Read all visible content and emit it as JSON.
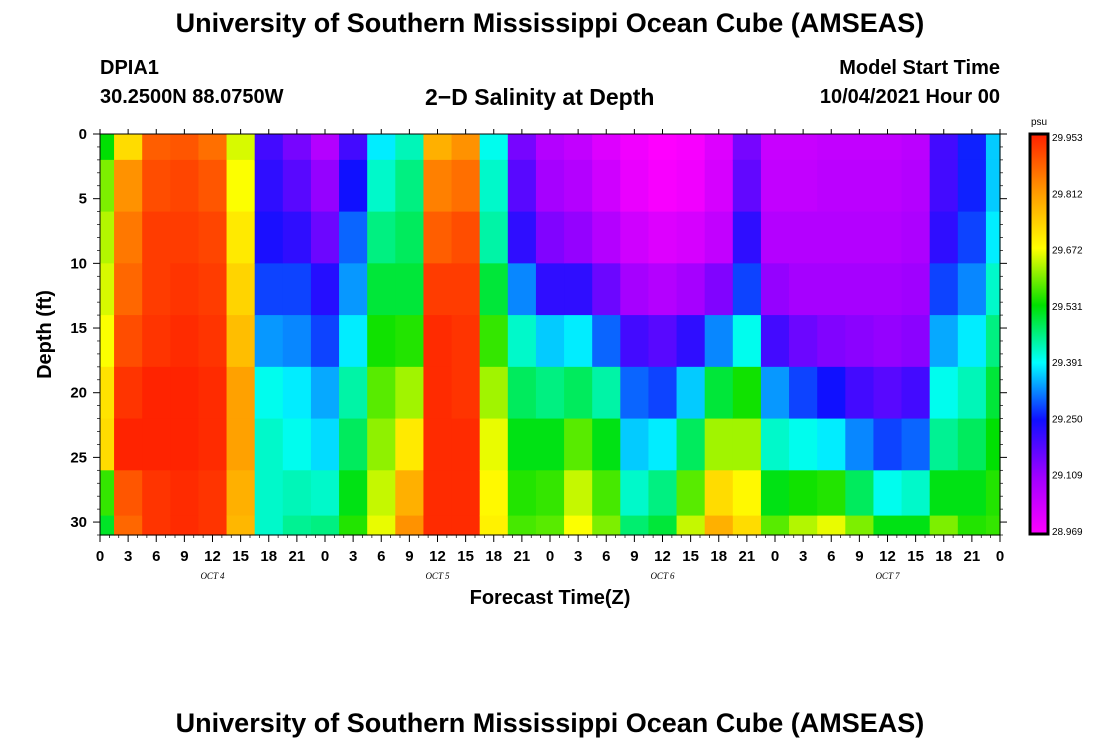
{
  "header": {
    "title": "University of Southern Mississippi Ocean Cube (AMSEAS)",
    "station_id": "DPIA1",
    "station_coords": "30.2500N  88.0750W",
    "chart_title": "2−D Salinity at Depth",
    "model_start_label": "Model Start Time",
    "model_start_value": "10/04/2021 Hour 00"
  },
  "footer": {
    "title": "University of Southern Mississippi Ocean Cube (AMSEAS)"
  },
  "chart_data": {
    "type": "heatmap",
    "title": "2−D Salinity at Depth",
    "xlabel": "Forecast Time(Z)",
    "ylabel": "Depth (ft)",
    "x_range_hours": [
      0,
      96
    ],
    "ylim": [
      0,
      31
    ],
    "y_inverted": true,
    "x_tick_labels": [
      "0",
      "3",
      "6",
      "9",
      "12",
      "15",
      "18",
      "21",
      "0",
      "3",
      "6",
      "9",
      "12",
      "15",
      "18",
      "21",
      "0",
      "3",
      "6",
      "9",
      "12",
      "15",
      "18",
      "21",
      "0",
      "3",
      "6",
      "9",
      "12",
      "15",
      "18",
      "21",
      "0"
    ],
    "day_labels": [
      "OCT 4",
      "OCT 5",
      "OCT 6",
      "OCT 7"
    ],
    "y_ticks": [
      0,
      5,
      10,
      15,
      20,
      25,
      30
    ],
    "colorbar": {
      "unit": "psu",
      "levels": [
        29.953,
        29.812,
        29.672,
        29.531,
        29.391,
        29.25,
        29.109,
        28.969
      ],
      "colors": [
        "#ff2000",
        "#ff9800",
        "#ffff00",
        "#00e000",
        "#00ffff",
        "#1010ff",
        "#a000ff",
        "#ff00ff"
      ]
    },
    "depths_ft": [
      0,
      4,
      8,
      12,
      16,
      20,
      24,
      28,
      31
    ],
    "times_hours": [
      0,
      3,
      6,
      9,
      12,
      15,
      18,
      21,
      24,
      27,
      30,
      33,
      36,
      39,
      42,
      45,
      48,
      51,
      54,
      57,
      60,
      63,
      66,
      69,
      72,
      75,
      78,
      81,
      84,
      87,
      90,
      93,
      96
    ],
    "salinity_psu": [
      [
        29.53,
        29.6,
        29.63,
        29.65,
        29.67,
        29.71,
        29.72,
        29.56,
        29.51,
        29.61,
        29.65,
        29.7,
        29.69
      ],
      [
        29.72,
        29.82,
        29.85,
        29.87,
        29.9,
        29.93,
        29.95,
        29.89,
        29.87,
        29.9,
        29.92,
        29.93,
        29.94
      ],
      [
        29.88,
        29.9,
        29.92,
        29.92,
        29.93,
        29.95,
        29.95,
        29.93,
        29.93,
        29.93,
        29.94,
        29.94,
        29.94
      ],
      [
        29.89,
        29.91,
        29.92,
        29.93,
        29.94,
        29.95,
        29.95,
        29.94,
        29.94,
        29.94,
        29.94,
        29.94,
        29.94
      ],
      [
        29.86,
        29.89,
        29.91,
        29.92,
        29.93,
        29.94,
        29.94,
        29.93,
        29.93,
        29.93,
        29.93,
        29.93,
        29.93
      ],
      [
        29.65,
        29.67,
        29.7,
        29.73,
        29.76,
        29.8,
        29.8,
        29.78,
        29.77,
        29.77,
        29.76,
        29.76,
        29.76
      ],
      [
        29.2,
        29.22,
        29.24,
        29.28,
        29.33,
        29.4,
        29.42,
        29.42,
        29.42,
        29.43,
        29.43,
        29.44,
        29.44
      ],
      [
        29.15,
        29.18,
        29.22,
        29.28,
        29.32,
        29.38,
        29.4,
        29.43,
        29.45,
        29.46,
        29.46,
        29.47,
        29.47
      ],
      [
        29.08,
        29.12,
        29.16,
        29.23,
        29.28,
        29.34,
        29.37,
        29.42,
        29.46,
        29.49,
        29.52,
        29.53,
        29.53
      ],
      [
        29.2,
        29.25,
        29.3,
        29.33,
        29.38,
        29.44,
        29.48,
        29.52,
        29.55,
        29.58,
        29.6,
        29.61,
        29.61
      ],
      [
        29.38,
        29.42,
        29.46,
        29.5,
        29.54,
        29.58,
        29.61,
        29.64,
        29.66,
        29.67,
        29.68,
        29.68,
        29.68
      ],
      [
        29.43,
        29.46,
        29.48,
        29.5,
        29.55,
        29.62,
        29.7,
        29.78,
        29.82,
        29.84,
        29.86,
        29.87,
        29.87
      ],
      [
        29.78,
        29.84,
        29.88,
        29.92,
        29.94,
        29.94,
        29.94,
        29.94,
        29.94,
        29.94,
        29.94,
        29.94,
        29.94
      ],
      [
        29.82,
        29.86,
        29.9,
        29.92,
        29.93,
        29.93,
        29.94,
        29.94,
        29.94,
        29.94,
        29.94,
        29.94,
        29.94
      ],
      [
        29.4,
        29.42,
        29.44,
        29.5,
        29.56,
        29.62,
        29.66,
        29.68,
        29.69,
        29.7,
        29.7,
        29.7,
        29.7
      ],
      [
        29.15,
        29.18,
        29.22,
        29.32,
        29.42,
        29.48,
        29.52,
        29.55,
        29.57,
        29.58,
        29.58,
        29.58,
        29.58
      ],
      [
        29.08,
        29.1,
        29.14,
        29.22,
        29.36,
        29.46,
        29.52,
        29.56,
        29.58,
        29.6,
        29.61,
        29.62,
        29.62
      ],
      [
        29.06,
        29.08,
        29.12,
        29.22,
        29.38,
        29.48,
        29.58,
        29.64,
        29.67,
        29.68,
        29.69,
        29.7,
        29.7
      ],
      [
        29.02,
        29.04,
        29.08,
        29.16,
        29.3,
        29.44,
        29.52,
        29.57,
        29.6,
        29.62,
        29.63,
        29.64,
        29.64
      ],
      [
        28.99,
        29.0,
        29.04,
        29.1,
        29.2,
        29.3,
        29.36,
        29.42,
        29.47,
        29.5,
        29.52,
        29.53,
        29.53
      ],
      [
        28.97,
        28.98,
        29.02,
        29.08,
        29.18,
        29.28,
        29.38,
        29.46,
        29.5,
        29.53,
        29.55,
        29.56,
        29.56
      ],
      [
        28.98,
        28.99,
        29.03,
        29.1,
        29.22,
        29.36,
        29.48,
        29.58,
        29.64,
        29.67,
        29.69,
        29.7,
        29.7
      ],
      [
        29.02,
        29.03,
        29.06,
        29.14,
        29.32,
        29.5,
        29.62,
        29.72,
        29.78,
        29.81,
        29.83,
        29.84,
        29.84
      ],
      [
        29.15,
        29.17,
        29.22,
        29.28,
        29.4,
        29.54,
        29.62,
        29.68,
        29.72,
        29.74,
        29.75,
        29.75,
        29.75
      ],
      [
        29.05,
        29.06,
        29.08,
        29.12,
        29.2,
        29.33,
        29.42,
        29.52,
        29.58,
        29.62,
        29.64,
        29.65,
        29.65
      ],
      [
        29.05,
        29.06,
        29.08,
        29.1,
        29.16,
        29.28,
        29.4,
        29.54,
        29.63,
        29.68,
        29.71,
        29.72,
        29.72
      ],
      [
        29.06,
        29.07,
        29.08,
        29.1,
        29.14,
        29.25,
        29.38,
        29.55,
        29.66,
        29.72,
        29.76,
        29.78,
        29.78
      ],
      [
        29.06,
        29.07,
        29.08,
        29.1,
        29.13,
        29.2,
        29.32,
        29.48,
        29.6,
        29.66,
        29.7,
        29.72,
        29.72
      ],
      [
        29.06,
        29.07,
        29.08,
        29.1,
        29.12,
        29.18,
        29.28,
        29.4,
        29.52,
        29.59,
        29.63,
        29.65,
        29.65
      ],
      [
        29.07,
        29.08,
        29.09,
        29.11,
        29.13,
        29.2,
        29.3,
        29.42,
        29.52,
        29.58,
        29.62,
        29.63,
        29.63
      ],
      [
        29.2,
        29.2,
        29.22,
        29.28,
        29.34,
        29.4,
        29.45,
        29.52,
        29.6,
        29.64,
        29.66,
        29.66,
        29.66
      ],
      [
        29.26,
        29.26,
        29.28,
        29.32,
        29.38,
        29.43,
        29.48,
        29.52,
        29.55,
        29.57,
        29.58,
        29.58,
        29.58
      ],
      [
        29.36,
        29.36,
        29.38,
        29.42,
        29.46,
        29.5,
        29.53,
        29.55,
        29.56,
        29.57,
        29.57,
        29.57,
        29.57
      ]
    ]
  }
}
